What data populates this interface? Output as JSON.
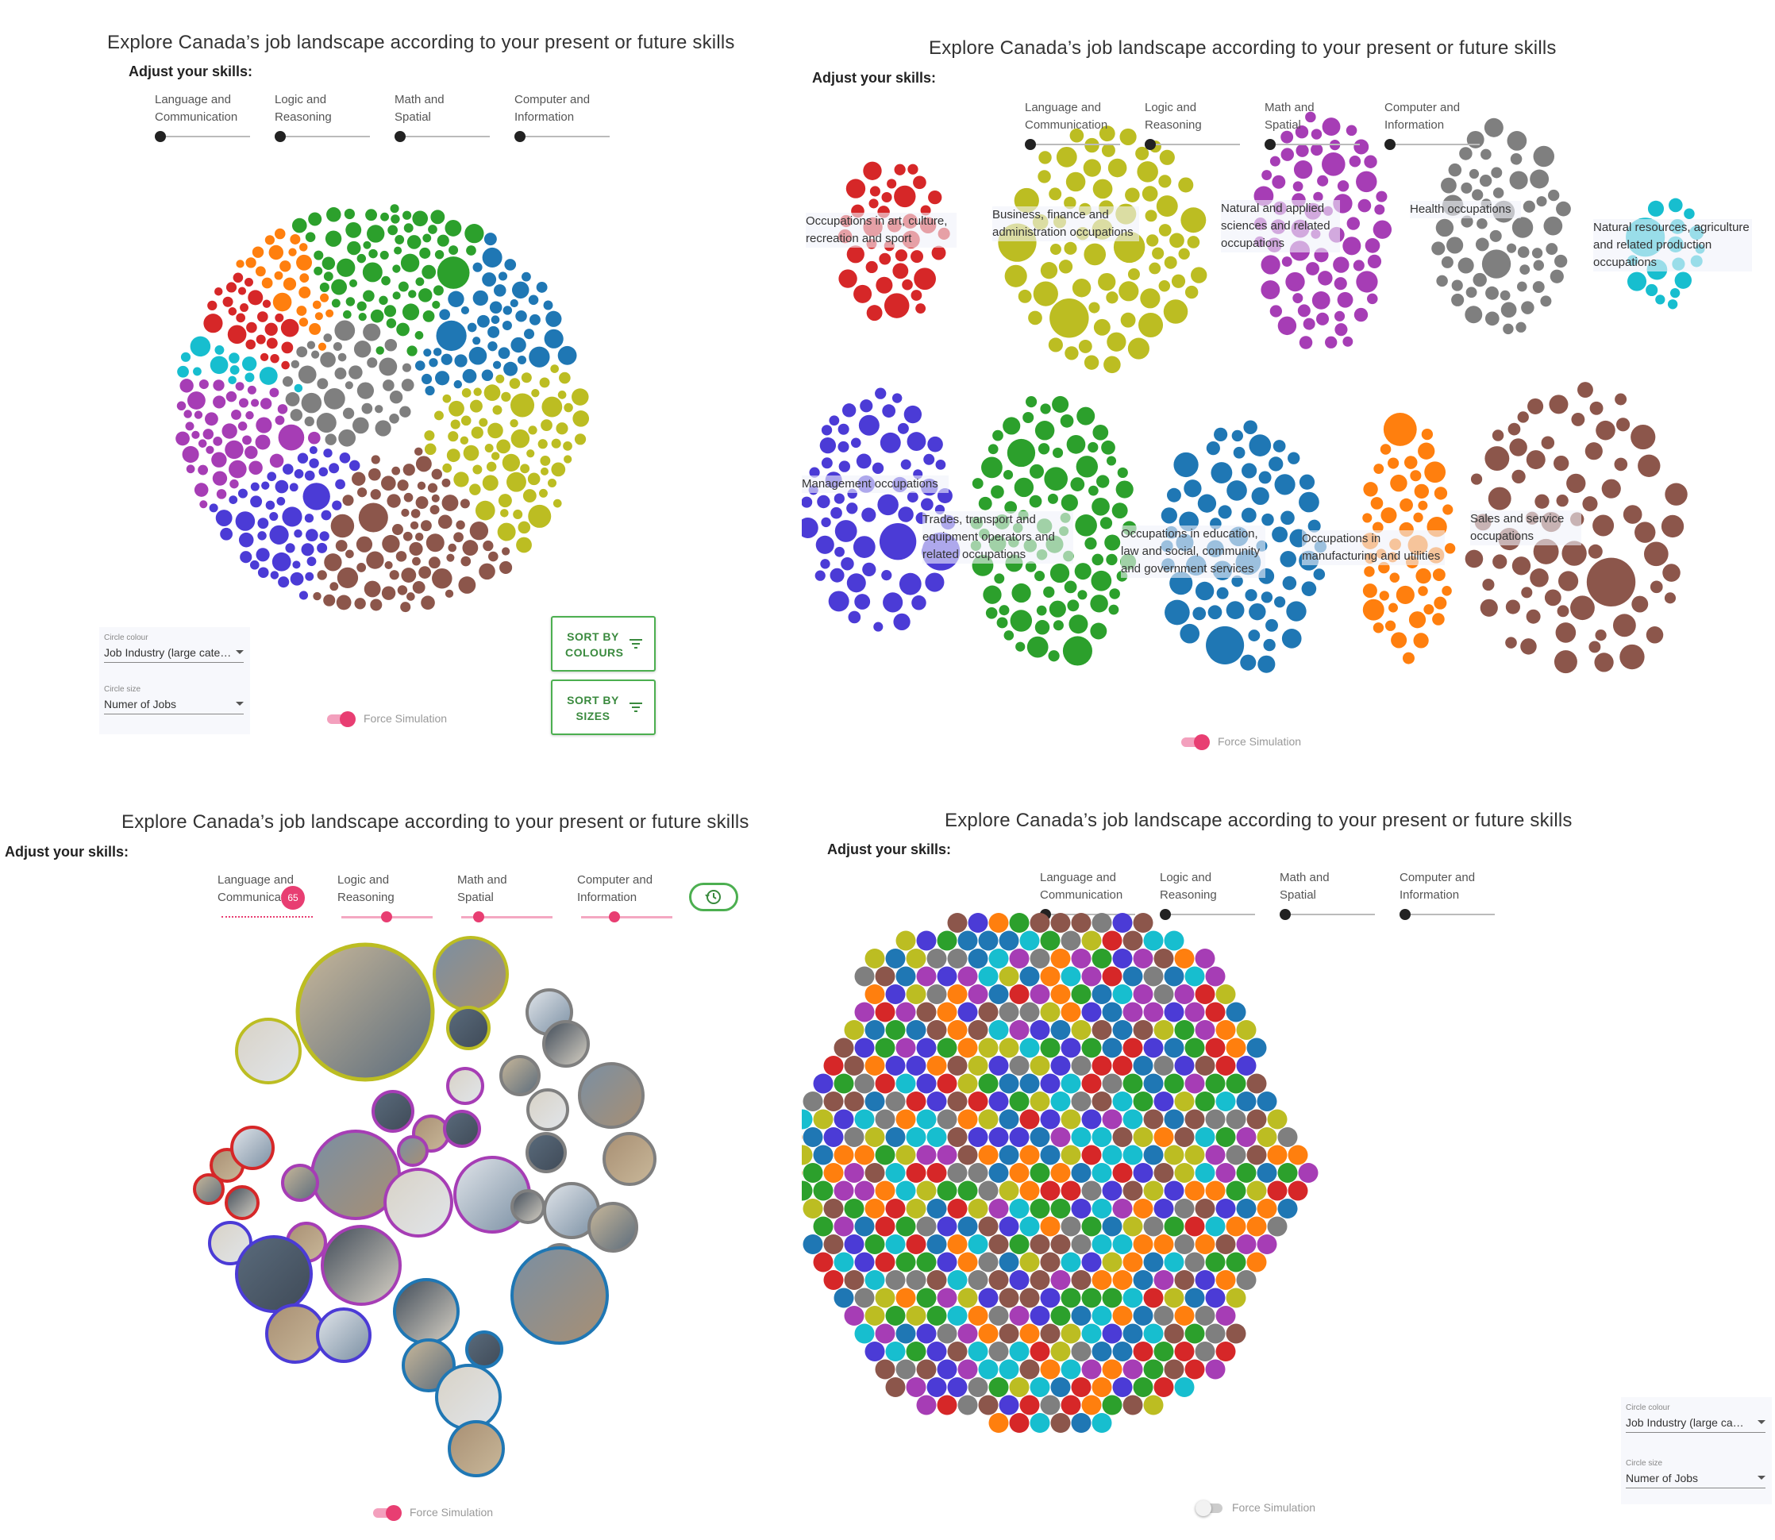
{
  "app": {
    "title": "Explore Canada’s job landscape according to your present or future skills",
    "adjust_label": "Adjust your skills:"
  },
  "sliders": [
    {
      "l1": "Language and",
      "l2": "Communication"
    },
    {
      "l1": "Logic and",
      "l2": "Reasoning"
    },
    {
      "l1": "Math and",
      "l2": "Spatial"
    },
    {
      "l1": "Computer and",
      "l2": "Information"
    }
  ],
  "slider_value_badge": "65",
  "controls": {
    "circle_colour_caption": "Circle colour",
    "circle_colour_value": "Job Industry (large cate…",
    "circle_colour_value_short": "Job Industry (large ca…",
    "circle_size_caption": "Circle size",
    "circle_size_value": "Numer of Jobs",
    "force_simulation": "Force Simulation",
    "sort_colours": "SORT BY COLOURS",
    "sort_sizes": "SORT BY SIZES"
  },
  "groups": [
    {
      "key": "art",
      "label": "Occupations in art, culture, recreation and sport",
      "color": "#d62728"
    },
    {
      "key": "business",
      "label": "Business, finance and administration occupations",
      "color": "#bcbd22"
    },
    {
      "key": "science",
      "label": "Natural and applied sciences and related occupations",
      "color": "#a63db5"
    },
    {
      "key": "health",
      "label": "Health occupations",
      "color": "#7f7f7f"
    },
    {
      "key": "resources",
      "label": "Natural resources, agriculture and related production occupations",
      "color": "#17becf"
    },
    {
      "key": "management",
      "label": "Management occupations",
      "color": "#4b3bd6"
    },
    {
      "key": "trades",
      "label": "Trades, transport and equipment operators and related occupations",
      "color": "#2ca02c"
    },
    {
      "key": "education",
      "label": "Occupations in education, law and social, community and government services",
      "color": "#1f77b4"
    },
    {
      "key": "manufacturing",
      "label": "Occupations in manufacturing and utilities",
      "color": "#ff7f0e"
    },
    {
      "key": "sales",
      "label": "Sales and service occupations",
      "color": "#8c564b"
    }
  ]
}
